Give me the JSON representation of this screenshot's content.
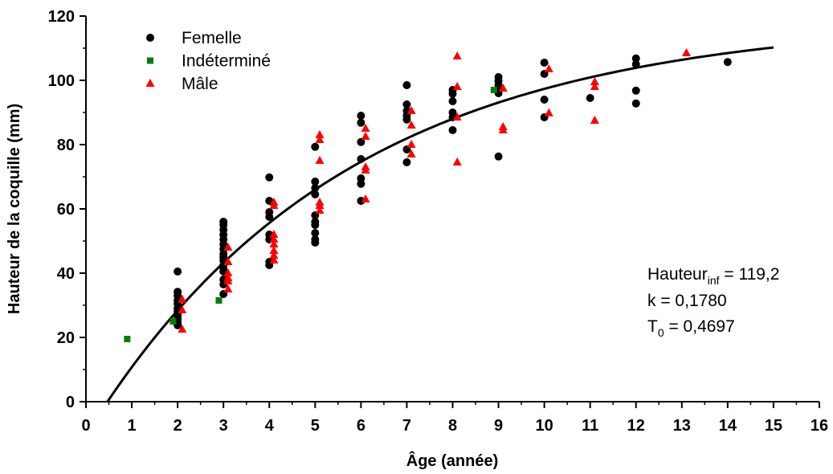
{
  "chart_data": {
    "type": "scatter",
    "xlabel": "Âge (année)",
    "ylabel": "Hauteur de la coquille (mm)",
    "xlim": [
      0,
      16
    ],
    "ylim": [
      0,
      120
    ],
    "x_ticks": [
      0,
      1,
      2,
      3,
      4,
      5,
      6,
      7,
      8,
      9,
      10,
      11,
      12,
      13,
      14,
      15,
      16
    ],
    "y_ticks": [
      0,
      20,
      40,
      60,
      80,
      100,
      120
    ],
    "grid": false,
    "legend_position": "top-left",
    "series": [
      {
        "name": "Femelle",
        "marker": "circle",
        "color": "#000000",
        "points": [
          [
            2.0,
            40.5
          ],
          [
            2.0,
            34.2
          ],
          [
            2.0,
            33.0
          ],
          [
            2.0,
            31.5
          ],
          [
            2.0,
            30.5
          ],
          [
            2.0,
            29.0
          ],
          [
            2.0,
            28.2
          ],
          [
            2.0,
            27.2
          ],
          [
            2.0,
            26.5
          ],
          [
            2.0,
            25.5
          ],
          [
            2.0,
            24.5
          ],
          [
            2.0,
            23.8
          ],
          [
            3.0,
            56.0
          ],
          [
            3.0,
            55.0
          ],
          [
            3.0,
            53.5
          ],
          [
            3.0,
            52.0
          ],
          [
            3.0,
            50.5
          ],
          [
            3.0,
            49.0
          ],
          [
            3.0,
            47.5
          ],
          [
            3.0,
            46.0
          ],
          [
            3.0,
            45.0
          ],
          [
            3.0,
            44.0
          ],
          [
            3.0,
            42.5
          ],
          [
            3.0,
            41.5
          ],
          [
            3.0,
            40.5
          ],
          [
            3.0,
            38.0
          ],
          [
            3.0,
            36.5
          ],
          [
            3.0,
            33.5
          ],
          [
            4.0,
            69.8
          ],
          [
            4.0,
            62.5
          ],
          [
            4.0,
            59.0
          ],
          [
            4.0,
            57.5
          ],
          [
            4.0,
            52.0
          ],
          [
            4.0,
            50.5
          ],
          [
            4.0,
            43.5
          ],
          [
            4.0,
            42.5
          ],
          [
            5.0,
            79.3
          ],
          [
            5.0,
            68.5
          ],
          [
            5.0,
            66.5
          ],
          [
            5.0,
            64.5
          ],
          [
            5.0,
            58.0
          ],
          [
            5.0,
            56.0
          ],
          [
            5.0,
            55.0
          ],
          [
            5.0,
            52.5
          ],
          [
            5.0,
            50.5
          ],
          [
            5.0,
            49.5
          ],
          [
            6.0,
            89.0
          ],
          [
            6.0,
            86.8
          ],
          [
            6.0,
            80.8
          ],
          [
            6.0,
            75.5
          ],
          [
            6.0,
            69.5
          ],
          [
            6.0,
            67.8
          ],
          [
            6.0,
            62.5
          ],
          [
            7.0,
            98.5
          ],
          [
            7.0,
            92.5
          ],
          [
            7.0,
            90.5
          ],
          [
            7.0,
            89.0
          ],
          [
            7.0,
            87.8
          ],
          [
            7.0,
            78.5
          ],
          [
            7.0,
            74.5
          ],
          [
            8.0,
            97.0
          ],
          [
            8.0,
            95.8
          ],
          [
            8.0,
            93.5
          ],
          [
            8.0,
            90.0
          ],
          [
            8.0,
            88.5
          ],
          [
            8.0,
            84.5
          ],
          [
            9.0,
            101.0
          ],
          [
            9.0,
            99.8
          ],
          [
            9.0,
            98.5
          ],
          [
            9.0,
            97.0
          ],
          [
            9.0,
            96.0
          ],
          [
            9.0,
            76.3
          ],
          [
            10.0,
            105.5
          ],
          [
            10.0,
            102.0
          ],
          [
            10.0,
            94.0
          ],
          [
            10.0,
            88.5
          ],
          [
            11.0,
            94.5
          ],
          [
            12.0,
            106.8
          ],
          [
            12.0,
            105.0
          ],
          [
            12.0,
            96.8
          ],
          [
            12.0,
            92.8
          ],
          [
            14.0,
            105.7
          ]
        ]
      },
      {
        "name": "Indéterminé",
        "marker": "square",
        "color": "#008000",
        "points": [
          [
            0.9,
            19.5
          ],
          [
            1.9,
            25.0
          ],
          [
            2.9,
            31.5
          ],
          [
            8.9,
            97.0
          ]
        ]
      },
      {
        "name": "Mâle",
        "marker": "triangle",
        "color": "#ff0000",
        "points": [
          [
            2.1,
            31.8
          ],
          [
            2.1,
            28.5
          ],
          [
            2.1,
            22.5
          ],
          [
            3.1,
            48.0
          ],
          [
            3.1,
            43.5
          ],
          [
            3.1,
            40.0
          ],
          [
            3.1,
            38.5
          ],
          [
            3.1,
            37.5
          ],
          [
            3.1,
            35.0
          ],
          [
            4.1,
            62.0
          ],
          [
            4.1,
            61.0
          ],
          [
            4.1,
            52.0
          ],
          [
            4.1,
            50.5
          ],
          [
            4.1,
            49.0
          ],
          [
            4.1,
            47.0
          ],
          [
            4.1,
            45.5
          ],
          [
            4.1,
            44.0
          ],
          [
            5.1,
            83.0
          ],
          [
            5.1,
            81.5
          ],
          [
            5.1,
            75.0
          ],
          [
            5.1,
            62.0
          ],
          [
            5.1,
            61.0
          ],
          [
            5.1,
            59.5
          ],
          [
            6.1,
            85.0
          ],
          [
            6.1,
            82.5
          ],
          [
            6.1,
            73.0
          ],
          [
            6.1,
            72.0
          ],
          [
            6.1,
            63.0
          ],
          [
            7.1,
            90.5
          ],
          [
            7.1,
            86.0
          ],
          [
            7.1,
            80.0
          ],
          [
            7.1,
            77.0
          ],
          [
            8.1,
            107.5
          ],
          [
            8.1,
            98.0
          ],
          [
            8.1,
            88.5
          ],
          [
            8.1,
            74.5
          ],
          [
            9.1,
            97.5
          ],
          [
            9.1,
            85.5
          ],
          [
            9.1,
            84.5
          ],
          [
            10.1,
            103.5
          ],
          [
            10.1,
            89.8
          ],
          [
            11.1,
            99.5
          ],
          [
            11.1,
            98.0
          ],
          [
            11.1,
            87.5
          ],
          [
            13.1,
            108.5
          ]
        ]
      }
    ],
    "fit_curve": {
      "model": "von Bertalanffy",
      "Hinf": 119.2,
      "k": 0.178,
      "T0": 0.4697,
      "x_range": [
        0.4697,
        15
      ]
    },
    "annotation": {
      "line1_main": "Hauteur",
      "line1_sub": "inf",
      "line1_rest": " = 119,2",
      "line2": "k = 0,1780",
      "line3_main": "T",
      "line3_sub": "0",
      "line3_rest": " = 0,4697"
    }
  }
}
